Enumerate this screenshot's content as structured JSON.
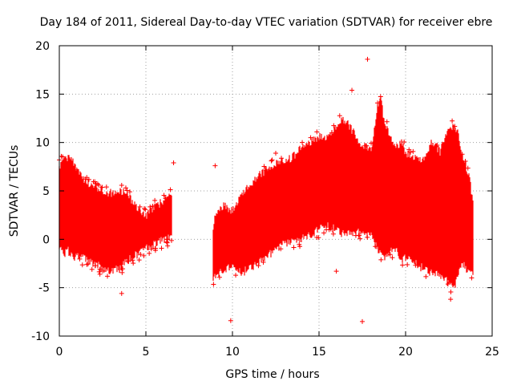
{
  "chart_data": {
    "type": "scatter",
    "title": "Day 184 of 2011, Sidereal Day-to-day VTEC variation (SDTVAR) for receiver ebre",
    "xlabel": "GPS time / hours",
    "ylabel": "SDTVAR / TECUs",
    "xlim": [
      0,
      25
    ],
    "ylim": [
      -10,
      20
    ],
    "xticks": [
      0,
      5,
      10,
      15,
      20,
      25
    ],
    "yticks": [
      -10,
      -5,
      0,
      5,
      10,
      15,
      20
    ],
    "grid": true,
    "marker": "+",
    "color": "#ff0000",
    "series": [
      {
        "name": "SDTVAR",
        "segments": [
          {
            "x": [
              0.0,
              0.3,
              0.5,
              0.8,
              1.0,
              1.5,
              2.0,
              2.5,
              3.0,
              3.5,
              3.8,
              4.2,
              4.6,
              5.0,
              5.5,
              6.0,
              6.5
            ],
            "upper": [
              7.5,
              8.2,
              8.5,
              8.0,
              7.0,
              6.0,
              5.5,
              5.0,
              4.8,
              4.9,
              5.0,
              4.0,
              3.0,
              2.5,
              3.2,
              4.0,
              4.5
            ],
            "lower": [
              -1.0,
              -1.5,
              -1.2,
              -1.8,
              -1.7,
              -2.0,
              -2.5,
              -3.0,
              -3.3,
              -3.0,
              -2.5,
              -1.8,
              -1.5,
              -1.0,
              -0.5,
              -0.1,
              0.2
            ]
          },
          {
            "x": [
              8.9,
              9.0,
              9.5,
              10.0,
              10.5,
              11.0,
              11.5,
              12.0,
              12.5,
              13.0,
              13.5,
              14.0,
              14.5,
              15.0,
              15.5,
              16.0,
              16.3,
              16.7,
              17.0,
              17.3,
              17.7,
              18.0,
              18.5,
              18.8,
              19.0,
              19.4,
              19.8,
              20.0,
              20.5,
              21.0,
              21.5,
              22.0,
              22.5,
              22.8,
              23.0,
              23.3,
              23.6,
              23.9
            ],
            "upper": [
              1.0,
              2.5,
              3.5,
              3.0,
              4.5,
              5.5,
              6.5,
              7.2,
              7.8,
              8.0,
              8.5,
              9.5,
              10.0,
              10.7,
              10.5,
              11.5,
              12.4,
              11.8,
              11.0,
              10.0,
              9.5,
              9.0,
              15.0,
              12.0,
              11.0,
              9.5,
              10.0,
              9.0,
              8.5,
              8.0,
              10.0,
              9.0,
              11.7,
              11.5,
              11.0,
              8.5,
              7.0,
              4.0
            ],
            "lower": [
              -4.0,
              -4.0,
              -3.0,
              -3.0,
              -3.5,
              -3.0,
              -2.5,
              -1.8,
              -1.0,
              -0.5,
              -0.3,
              0.0,
              0.5,
              1.0,
              1.3,
              1.0,
              0.6,
              0.5,
              0.6,
              0.7,
              0.5,
              0.3,
              -1.5,
              -2.0,
              -1.5,
              -1.0,
              -2.0,
              -2.0,
              -2.5,
              -3.0,
              -3.5,
              -3.8,
              -4.5,
              -5.0,
              -4.0,
              -2.5,
              -3.5,
              -3.5
            ]
          }
        ],
        "outliers": [
          {
            "x": 17.8,
            "y": 18.6
          },
          {
            "x": 16.9,
            "y": 15.4
          },
          {
            "x": 9.9,
            "y": -8.4
          },
          {
            "x": 17.5,
            "y": -8.5
          },
          {
            "x": 3.6,
            "y": -5.6
          },
          {
            "x": 6.6,
            "y": 7.9
          },
          {
            "x": 9.0,
            "y": 7.6
          },
          {
            "x": 12.5,
            "y": 8.9
          },
          {
            "x": 0.0,
            "y": 8.2
          },
          {
            "x": 16.0,
            "y": -3.3
          },
          {
            "x": 22.6,
            "y": -6.2
          }
        ]
      }
    ]
  }
}
